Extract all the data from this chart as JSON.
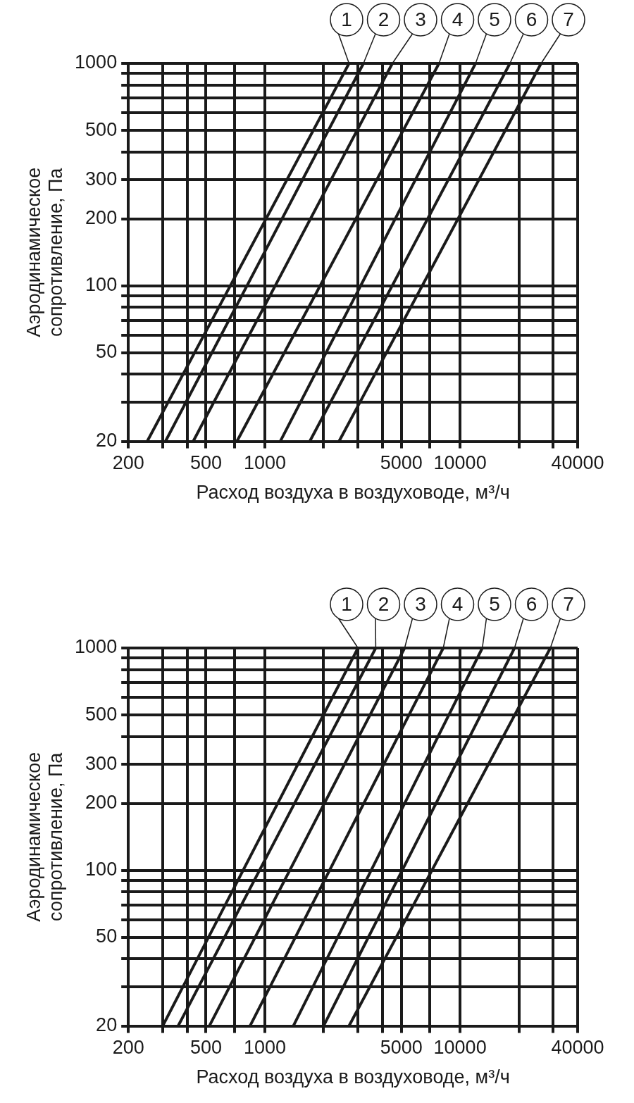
{
  "chart_data": [
    {
      "type": "line",
      "xlabel": "Расход воздуха в воздуховоде, м³/ч",
      "ylabel": "Аэродинамическое сопротивление, Па",
      "log": "xy",
      "grid": true,
      "legend": "top right",
      "xlim": [
        200,
        40000
      ],
      "ylim": [
        20,
        1000
      ],
      "xticks": [
        200,
        {
          "value": 300,
          "label": null
        },
        {
          "value": 400,
          "label": null
        },
        500,
        {
          "value": 700,
          "label": null
        },
        1000,
        {
          "value": 2000,
          "label": null
        },
        {
          "value": 3000,
          "label": null
        },
        {
          "value": 4000,
          "label": null
        },
        5000,
        {
          "value": 7000,
          "label": null
        },
        10000,
        {
          "value": 20000,
          "label": null
        },
        {
          "value": 30000,
          "label": null
        },
        40000
      ],
      "yticks": [
        20,
        {
          "value": 30,
          "label": null
        },
        {
          "value": 40,
          "label": null
        },
        50,
        {
          "value": 60,
          "label": null
        },
        {
          "value": 70,
          "label": null
        },
        {
          "value": 80,
          "label": null
        },
        {
          "value": 90,
          "label": null
        },
        100,
        200,
        300,
        {
          "value": 400,
          "label": null
        },
        500,
        {
          "value": 600,
          "label": null
        },
        {
          "value": 700,
          "label": null
        },
        {
          "value": 800,
          "label": null
        },
        {
          "value": 900,
          "label": null
        },
        1000
      ],
      "series": [
        {
          "name": "1",
          "color": "#1a1a1a",
          "x": [
            250,
            2700
          ],
          "values": [
            20,
            1000
          ]
        },
        {
          "name": "2",
          "color": "#1a1a1a",
          "x": [
            310,
            3200
          ],
          "values": [
            20,
            1000
          ]
        },
        {
          "name": "3",
          "color": "#1a1a1a",
          "x": [
            430,
            4500
          ],
          "values": [
            20,
            1000
          ]
        },
        {
          "name": "4",
          "color": "#1a1a1a",
          "x": [
            720,
            7800
          ],
          "values": [
            20,
            1000
          ]
        },
        {
          "name": "5",
          "color": "#1a1a1a",
          "x": [
            1200,
            12000
          ],
          "values": [
            20,
            1000
          ]
        },
        {
          "name": "6",
          "color": "#1a1a1a",
          "x": [
            1700,
            18000
          ],
          "values": [
            20,
            1000
          ]
        },
        {
          "name": "7",
          "color": "#1a1a1a",
          "x": [
            2400,
            26000
          ],
          "values": [
            20,
            1000
          ]
        }
      ]
    },
    {
      "type": "line",
      "xlabel": "Расход воздуха в воздуховоде, м³/ч",
      "ylabel": "Аэродинамическое сопротивление, Па",
      "log": "xy",
      "grid": true,
      "legend": "top right",
      "xlim": [
        200,
        40000
      ],
      "ylim": [
        20,
        1000
      ],
      "xticks": [
        200,
        {
          "value": 300,
          "label": null
        },
        {
          "value": 400,
          "label": null
        },
        500,
        {
          "value": 700,
          "label": null
        },
        1000,
        {
          "value": 2000,
          "label": null
        },
        {
          "value": 3000,
          "label": null
        },
        {
          "value": 4000,
          "label": null
        },
        5000,
        {
          "value": 7000,
          "label": null
        },
        10000,
        {
          "value": 20000,
          "label": null
        },
        {
          "value": 30000,
          "label": null
        },
        40000
      ],
      "yticks": [
        20,
        {
          "value": 30,
          "label": null
        },
        {
          "value": 40,
          "label": null
        },
        50,
        {
          "value": 60,
          "label": null
        },
        {
          "value": 70,
          "label": null
        },
        {
          "value": 80,
          "label": null
        },
        {
          "value": 90,
          "label": null
        },
        100,
        200,
        300,
        {
          "value": 400,
          "label": null
        },
        500,
        {
          "value": 600,
          "label": null
        },
        {
          "value": 700,
          "label": null
        },
        {
          "value": 800,
          "label": null
        },
        {
          "value": 900,
          "label": null
        },
        1000
      ],
      "series": [
        {
          "name": "1",
          "color": "#1a1a1a",
          "x": [
            300,
            3000
          ],
          "values": [
            20,
            1000
          ]
        },
        {
          "name": "2",
          "color": "#1a1a1a",
          "x": [
            360,
            3700
          ],
          "values": [
            20,
            1000
          ]
        },
        {
          "name": "3",
          "color": "#1a1a1a",
          "x": [
            520,
            5200
          ],
          "values": [
            20,
            1000
          ]
        },
        {
          "name": "4",
          "color": "#1a1a1a",
          "x": [
            840,
            8200
          ],
          "values": [
            20,
            1000
          ]
        },
        {
          "name": "5",
          "color": "#1a1a1a",
          "x": [
            1400,
            13000
          ],
          "values": [
            20,
            1000
          ]
        },
        {
          "name": "6",
          "color": "#1a1a1a",
          "x": [
            2000,
            19000
          ],
          "values": [
            20,
            1000
          ]
        },
        {
          "name": "7",
          "color": "#1a1a1a",
          "x": [
            2700,
            29000
          ],
          "values": [
            20,
            1000
          ]
        }
      ]
    }
  ]
}
